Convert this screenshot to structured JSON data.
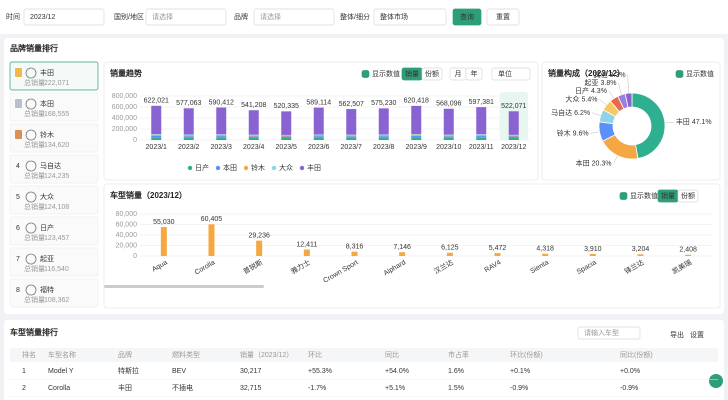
{
  "filters": {
    "time_label": "时间",
    "time_value": "2023/12",
    "region_label": "国别/地区",
    "region_placeholder": "请选择",
    "brand_label": "品牌",
    "brand_placeholder": "请选择",
    "segment_label": "整体/细分",
    "segment_value": "整体市场",
    "query": "查询",
    "reset": "重置"
  },
  "brand_panel": {
    "title": "品牌销量排行",
    "sales_label": "总销量",
    "brands": [
      {
        "name": "丰田",
        "sales": "222,071"
      },
      {
        "name": "本田",
        "sales": "168,555"
      },
      {
        "name": "铃木",
        "sales": "134,620"
      },
      {
        "rank": "4",
        "name": "马自达",
        "sales": "124,235"
      },
      {
        "rank": "5",
        "name": "大众",
        "sales": "124,108"
      },
      {
        "rank": "6",
        "name": "日产",
        "sales": "123,457"
      },
      {
        "rank": "7",
        "name": "起亚",
        "sales": "116,540"
      },
      {
        "rank": "8",
        "name": "福特",
        "sales": "108,362"
      }
    ]
  },
  "trend_controls": {
    "show_values": "显示数值",
    "sales": "销量",
    "share": "份额",
    "month": "月",
    "year": "年",
    "unit": "单位"
  },
  "composition_controls": {
    "show_values": "显示数值"
  },
  "model_controls": {
    "show_values": "显示数值",
    "sales": "销量",
    "share": "份额"
  },
  "chart_data": [
    {
      "type": "stacked-bar",
      "title": "销量趋势",
      "categories": [
        "2023/1",
        "2023/2",
        "2023/3",
        "2023/4",
        "2023/5",
        "2023/6",
        "2023/7",
        "2023/8",
        "2023/9",
        "2023/10",
        "2023/11",
        "2023/12"
      ],
      "series": [
        {
          "name": "日产",
          "color": "#2eaf8f",
          "values": [
            42000,
            40000,
            41000,
            38000,
            36000,
            40000,
            39000,
            40000,
            43000,
            39000,
            41000,
            37000
          ]
        },
        {
          "name": "本田",
          "color": "#5b8ff9",
          "values": [
            31000,
            29000,
            30000,
            28000,
            27000,
            30000,
            29000,
            30000,
            32000,
            29000,
            31000,
            28000
          ]
        },
        {
          "name": "铃木",
          "color": "#f5a742",
          "values": [
            22000,
            21000,
            22000,
            20000,
            19000,
            21000,
            20000,
            21000,
            23000,
            20000,
            22000,
            19000
          ]
        },
        {
          "name": "大众",
          "color": "#8fd3e8",
          "values": [
            12000,
            11000,
            11000,
            10000,
            10000,
            11000,
            10000,
            11000,
            12000,
            11000,
            11000,
            10000
          ]
        },
        {
          "name": "丰田",
          "color": "#8a63d2",
          "values": [
            515021,
            476063,
            486412,
            445208,
            428335,
            487114,
            464507,
            473230,
            510418,
            469096,
            492381,
            428071
          ]
        }
      ],
      "totals": [
        622021,
        577063,
        590412,
        541208,
        520335,
        589114,
        562507,
        575230,
        620418,
        568096,
        597381,
        522071
      ],
      "total_labels": [
        "622,021",
        "577,063",
        "590,412",
        "541,208",
        "520,335",
        "589,114",
        "562,507",
        "575,230",
        "620,418",
        "568,096",
        "597,381",
        "522,071"
      ],
      "ylim": [
        0,
        800000
      ],
      "yticks": [
        0,
        {
          "value": 200000,
          "label": "200,000"
        },
        {
          "value": 400000,
          "label": "400,000"
        },
        {
          "value": 600000,
          "label": "600,000"
        },
        {
          "value": 800000,
          "label": "800,000"
        }
      ],
      "grid": true
    },
    {
      "type": "donut",
      "title": "销量构成（2023/12）",
      "categories": [
        "丰田",
        "本田",
        "铃木",
        "马自达",
        "大众",
        "日产",
        "起亚",
        "其他"
      ],
      "values": [
        47.1,
        20.3,
        9.6,
        6.2,
        5.4,
        4.3,
        3.8,
        3.3
      ],
      "value_labels": [
        "47.1%",
        "20.3%",
        "9.6%",
        "6.2%",
        "5.4%",
        "4.3%",
        "3.8%",
        "3.3%"
      ],
      "colors": [
        "#2eaf8f",
        "#f5a742",
        "#5b8ff9",
        "#8fd3e8",
        "#f6c85f",
        "#e8684a",
        "#9a7fe0",
        "#8a63d2"
      ]
    },
    {
      "type": "bar",
      "title": "车型销量（2023/12）",
      "categories": [
        "Aqua",
        "Corolla",
        "普锐斯",
        "雅力士",
        "Crown Sport",
        "Alphard",
        "汉兰达",
        "RAV4",
        "Sienta",
        "Spacia",
        "锋兰达",
        "凯美瑞"
      ],
      "values": [
        55030,
        60405,
        29236,
        12411,
        8316,
        7146,
        6125,
        5472,
        4318,
        3910,
        3204,
        2408
      ],
      "value_labels": [
        "55,030",
        "60,405",
        "29,236",
        "12,411",
        "8,316",
        "7,146",
        "6,125",
        "5,472",
        "4,318",
        "3,910",
        "3,204",
        "2,408"
      ],
      "color": "#f5a742",
      "ylim": [
        0,
        80000
      ],
      "yticks": [
        0,
        {
          "value": 20000,
          "label": "20,000"
        },
        {
          "value": 40000,
          "label": "40,000"
        },
        {
          "value": 60000,
          "label": "60,000"
        },
        {
          "value": 80000,
          "label": "80,000"
        }
      ],
      "grid": true
    }
  ],
  "table": {
    "title": "车型销量排行",
    "search_placeholder": "请输入车型",
    "export": "导出",
    "settings": "设置",
    "header": [
      "排名",
      "车型名称",
      "品牌",
      "燃料类型",
      "销量（2023/12）",
      "环比",
      "同比",
      "市占率",
      "环比(份额)",
      "同比(份额)"
    ],
    "rows": [
      [
        "1",
        "Model Y",
        "特斯拉",
        "BEV",
        "30,217",
        "+55.3%",
        "+54.0%",
        "1.6%",
        "+0.1%",
        "+0.0%"
      ],
      [
        "2",
        "Corolla",
        "丰田",
        "不插电",
        "32,715",
        "-1.7%",
        "+5.1%",
        "1.5%",
        "-0.9%",
        "-0.9%"
      ]
    ]
  }
}
